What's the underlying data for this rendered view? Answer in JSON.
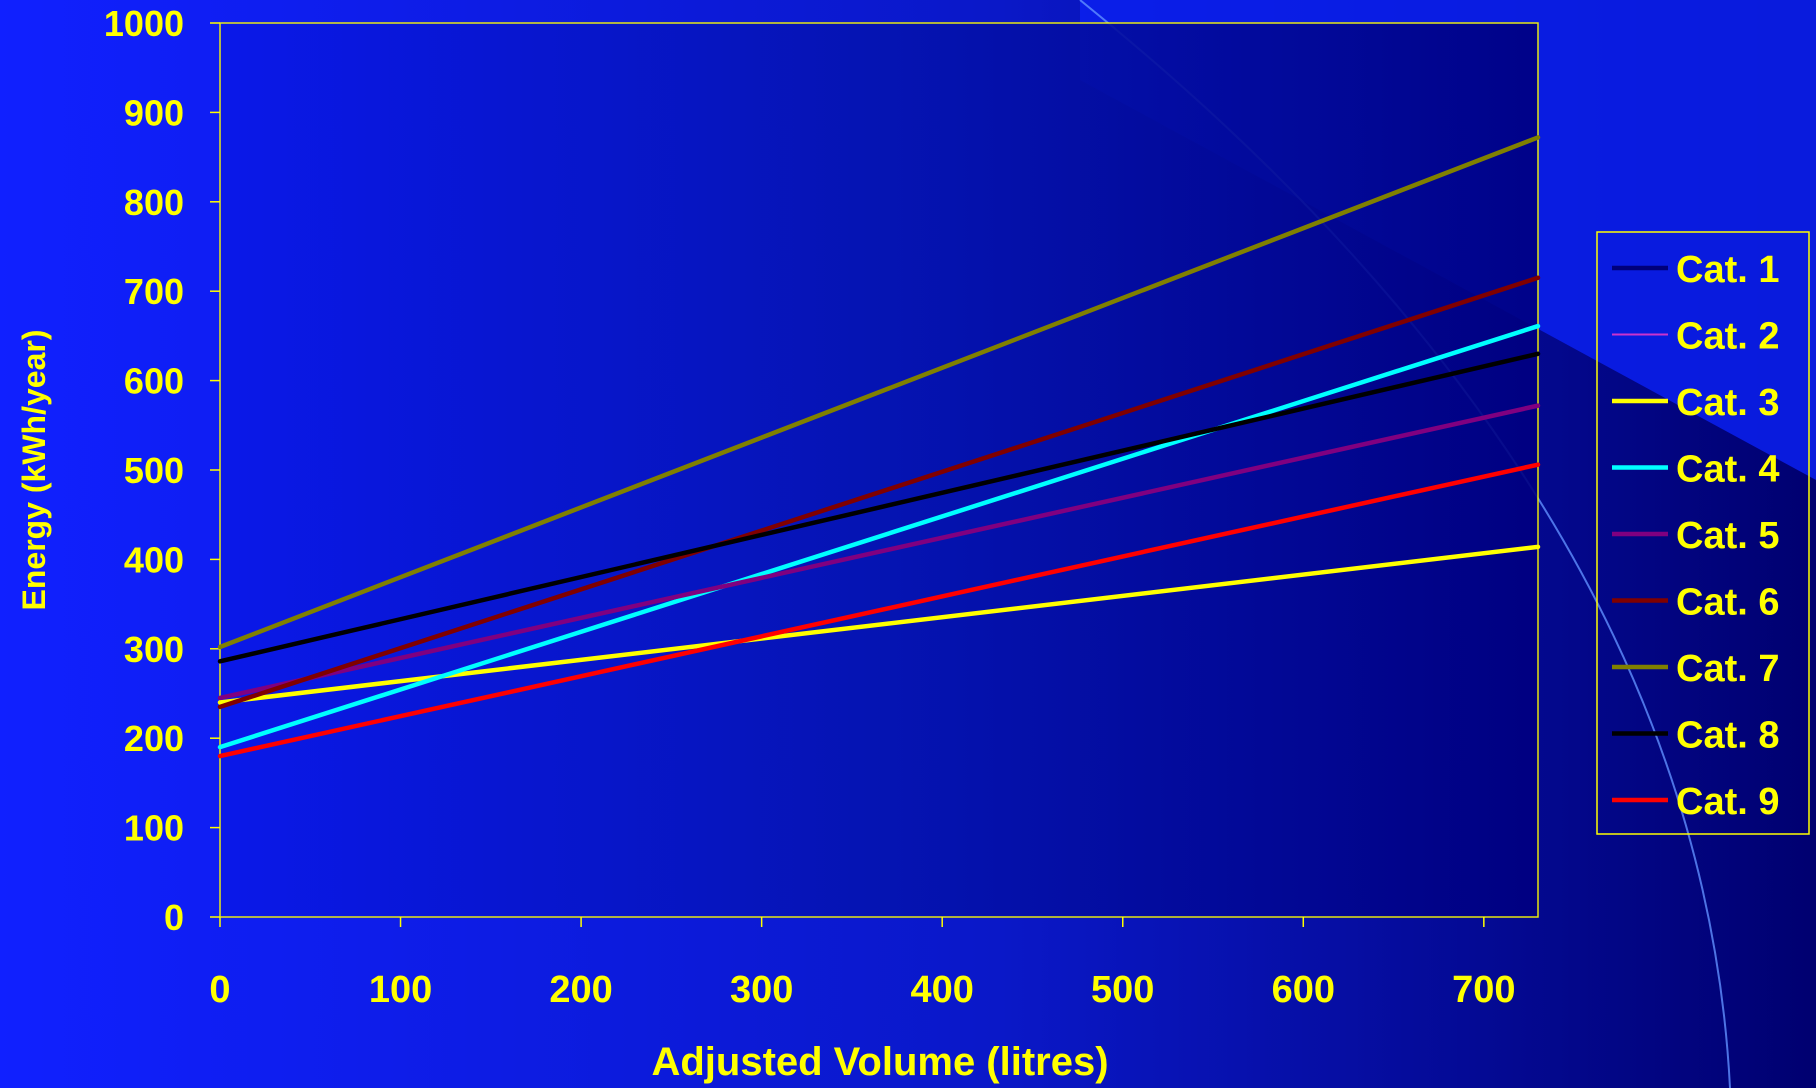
{
  "chart_data": {
    "type": "line",
    "xlabel": "Adjusted Volume (litres)",
    "ylabel": "Energy (kWh/year)",
    "xlim": [
      0,
      730
    ],
    "ylim": [
      0,
      1000
    ],
    "x_ticks": [
      0,
      100,
      200,
      300,
      400,
      500,
      600,
      700
    ],
    "y_ticks": [
      0,
      100,
      200,
      300,
      400,
      500,
      600,
      700,
      800,
      900,
      1000
    ],
    "x_tick_labels": [
      "0",
      "100",
      "200",
      "300",
      "400",
      "500",
      "600",
      "700"
    ],
    "y_tick_labels": [
      "0",
      "100",
      "200",
      "300",
      "400",
      "500",
      "600",
      "700",
      "800",
      "900",
      "1000"
    ],
    "grid": false,
    "legend_position": "right",
    "series": [
      {
        "name": "Cat. 1",
        "color": "#00007a",
        "x": [],
        "y": []
      },
      {
        "name": "Cat. 2",
        "color": "#cc33cc",
        "x": [],
        "y": []
      },
      {
        "name": "Cat. 3",
        "color": "#ffff00",
        "x": [
          0,
          730
        ],
        "y": [
          240,
          414
        ]
      },
      {
        "name": "Cat. 4",
        "color": "#00ffff",
        "x": [
          0,
          730
        ],
        "y": [
          190,
          661
        ]
      },
      {
        "name": "Cat. 5",
        "color": "#800080",
        "x": [
          0,
          730
        ],
        "y": [
          245,
          572
        ]
      },
      {
        "name": "Cat. 6",
        "color": "#800000",
        "x": [
          0,
          730
        ],
        "y": [
          235,
          715
        ]
      },
      {
        "name": "Cat. 7",
        "color": "#808000",
        "x": [
          0,
          730
        ],
        "y": [
          302,
          872
        ]
      },
      {
        "name": "Cat. 8",
        "color": "#000000",
        "x": [
          0,
          730
        ],
        "y": [
          286,
          630
        ]
      },
      {
        "name": "Cat. 9",
        "color": "#ff0000",
        "x": [
          0,
          730
        ],
        "y": [
          180,
          506
        ]
      }
    ]
  },
  "colors": {
    "background": "#0a14e0",
    "plot_area": "#000080",
    "text": "#ffff00",
    "axis": "#ffff00"
  }
}
